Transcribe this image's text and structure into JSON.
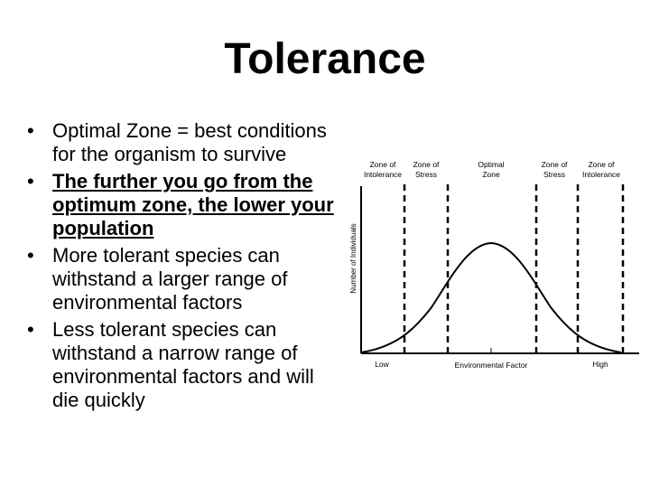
{
  "title": "Tolerance",
  "bullets": [
    {
      "text": "Optimal Zone = best conditions for the organism to survive",
      "emphasis": false
    },
    {
      "text": "The further you go from the optimum zone, the lower your population",
      "emphasis": true
    },
    {
      "text": "More tolerant species can withstand a larger range of environmental factors",
      "emphasis": false
    },
    {
      "text": "Less tolerant species can withstand a narrow range of environmental factors and will die quickly",
      "emphasis": false
    }
  ],
  "diagram": {
    "zones": [
      {
        "line1": "Zone of",
        "line2": "Intolerance"
      },
      {
        "line1": "Zone of",
        "line2": "Stress"
      },
      {
        "line1": "Optimal",
        "line2": "Zone"
      },
      {
        "line1": "Zone of",
        "line2": "Stress"
      },
      {
        "line1": "Zone of",
        "line2": "Intolerance"
      }
    ],
    "ylabel": "Number of Individuals",
    "xlabel": "Environmental Factor",
    "low_label": "Low",
    "high_label": "High"
  }
}
